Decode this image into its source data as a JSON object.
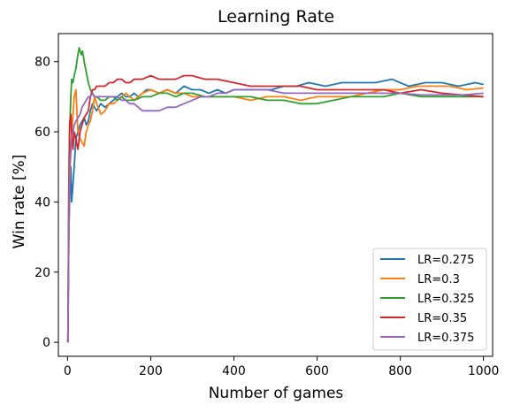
{
  "chart_data": {
    "type": "line",
    "title": "Learning Rate",
    "xlabel": "Number of games",
    "ylabel": "Win rate [%]",
    "xlim": [
      -22,
      1022
    ],
    "ylim": [
      -4,
      88
    ],
    "xticks": [
      0,
      200,
      400,
      600,
      800,
      1000
    ],
    "yticks": [
      0,
      20,
      40,
      60,
      80
    ],
    "grid": false,
    "legend_position": "bottom-right",
    "series": [
      {
        "name": "LR=0.275",
        "color": "#1f77b4",
        "x": [
          1,
          3,
          5,
          8,
          10,
          13,
          16,
          20,
          25,
          30,
          35,
          40,
          45,
          50,
          55,
          60,
          65,
          70,
          75,
          80,
          90,
          100,
          110,
          120,
          130,
          140,
          150,
          160,
          170,
          180,
          190,
          200,
          220,
          240,
          260,
          280,
          300,
          320,
          340,
          360,
          380,
          400,
          430,
          460,
          490,
          520,
          550,
          580,
          620,
          660,
          700,
          740,
          780,
          820,
          860,
          900,
          940,
          980,
          1000
        ],
        "y": [
          0,
          30,
          40,
          50,
          40,
          45,
          50,
          58,
          60,
          62,
          63,
          64,
          62,
          63,
          66,
          68,
          67,
          66,
          67,
          68,
          67,
          68,
          69,
          70,
          71,
          70,
          70,
          71,
          70,
          71,
          72,
          72,
          71,
          72,
          71,
          73,
          72,
          72,
          71,
          72,
          71,
          72,
          72,
          72,
          72,
          73,
          73,
          74,
          73,
          74,
          74,
          74,
          75,
          73,
          74,
          74,
          73,
          74,
          73.5
        ]
      },
      {
        "name": "LR=0.3",
        "color": "#ff7f0e",
        "x": [
          1,
          3,
          5,
          8,
          10,
          13,
          16,
          20,
          25,
          30,
          35,
          40,
          45,
          50,
          55,
          60,
          65,
          70,
          80,
          90,
          100,
          110,
          120,
          130,
          140,
          150,
          160,
          180,
          200,
          220,
          240,
          260,
          280,
          300,
          330,
          360,
          400,
          440,
          480,
          520,
          560,
          600,
          640,
          680,
          720,
          760,
          800,
          840,
          880,
          920,
          960,
          1000
        ],
        "y": [
          0,
          30,
          45,
          55,
          60,
          65,
          70,
          72,
          60,
          58,
          57,
          56,
          60,
          62,
          63,
          66,
          70,
          68,
          65,
          66,
          68,
          68,
          69,
          70,
          71,
          70,
          69,
          71,
          72,
          71,
          72,
          71,
          71,
          70,
          70,
          70,
          70,
          69,
          70,
          70,
          69,
          70,
          70,
          70,
          71,
          72,
          72,
          73,
          73,
          73,
          72,
          72.5
        ]
      },
      {
        "name": "LR=0.325",
        "color": "#2ca02c",
        "x": [
          1,
          3,
          5,
          8,
          10,
          13,
          16,
          20,
          25,
          28,
          30,
          33,
          36,
          40,
          45,
          50,
          55,
          60,
          65,
          70,
          80,
          90,
          100,
          110,
          120,
          130,
          140,
          160,
          180,
          200,
          220,
          240,
          260,
          280,
          300,
          330,
          360,
          400,
          440,
          480,
          520,
          560,
          600,
          640,
          680,
          720,
          760,
          800,
          850,
          900,
          950,
          1000
        ],
        "y": [
          0,
          45,
          60,
          70,
          75,
          74,
          76,
          78,
          82,
          84,
          83,
          82,
          83,
          80,
          77,
          74,
          72,
          71,
          70,
          70,
          69,
          69,
          70,
          70,
          69,
          70,
          69,
          69,
          70,
          70,
          71,
          71,
          70,
          71,
          71,
          70,
          70,
          70,
          70,
          69,
          69,
          68,
          68,
          69,
          70,
          70,
          70,
          71,
          70,
          70,
          70,
          70
        ]
      },
      {
        "name": "LR=0.35",
        "color": "#d62728",
        "x": [
          1,
          3,
          5,
          8,
          10,
          13,
          16,
          20,
          25,
          30,
          35,
          40,
          45,
          50,
          55,
          60,
          65,
          70,
          80,
          90,
          100,
          110,
          120,
          130,
          140,
          150,
          160,
          180,
          200,
          220,
          240,
          260,
          280,
          300,
          330,
          360,
          400,
          440,
          480,
          520,
          560,
          600,
          640,
          680,
          720,
          760,
          800,
          850,
          900,
          950,
          1000
        ],
        "y": [
          0,
          40,
          62,
          65,
          60,
          55,
          60,
          58,
          55,
          60,
          62,
          64,
          65,
          66,
          70,
          72,
          72,
          73,
          73,
          73,
          74,
          74,
          75,
          75,
          74,
          74,
          75,
          75,
          76,
          75,
          75,
          75,
          76,
          76,
          75,
          75,
          74,
          73,
          73,
          73,
          73,
          72,
          72,
          72,
          72,
          72,
          71,
          72,
          71,
          70.5,
          70
        ]
      },
      {
        "name": "LR=0.375",
        "color": "#9467bd",
        "x": [
          1,
          3,
          5,
          8,
          10,
          13,
          16,
          20,
          25,
          30,
          35,
          40,
          45,
          50,
          55,
          60,
          65,
          70,
          80,
          90,
          100,
          110,
          120,
          130,
          140,
          150,
          160,
          170,
          180,
          190,
          200,
          220,
          240,
          260,
          280,
          300,
          320,
          340,
          360,
          380,
          400,
          440,
          480,
          520,
          560,
          600,
          640,
          680,
          720,
          760,
          800,
          850,
          900,
          950,
          1000
        ],
        "y": [
          0,
          30,
          50,
          55,
          58,
          60,
          62,
          63,
          64,
          65,
          67,
          68,
          69,
          70,
          70,
          71,
          70,
          70,
          70,
          70,
          70,
          70,
          70,
          69,
          69,
          68,
          68,
          67,
          66,
          66,
          66,
          66,
          67,
          67,
          68,
          69,
          70,
          70,
          71,
          71,
          72,
          72,
          72,
          71,
          71,
          71,
          71,
          71,
          71,
          71,
          71,
          70.5,
          70.5,
          70.5,
          71
        ]
      }
    ]
  }
}
